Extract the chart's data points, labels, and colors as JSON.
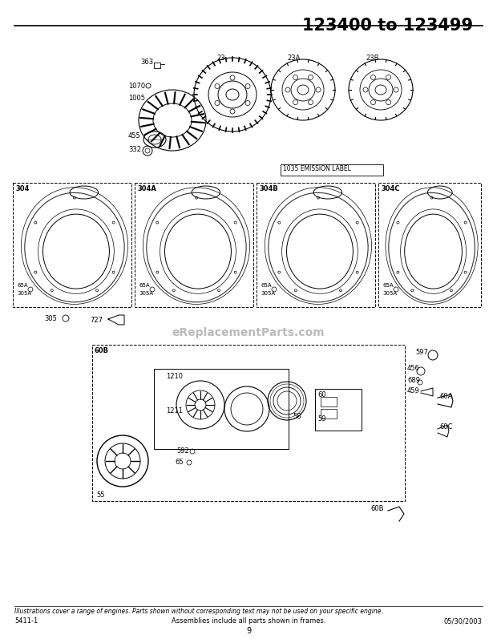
{
  "title": "123400 to 123499",
  "bg_color": "#ffffff",
  "footer_note_italic": "Illustrations cover a range of engines. Parts shown without corresponding text may not be used on your specific engine.",
  "footer_note_center": "Assemblies include all parts shown in frames.",
  "footer_left": "5411-1",
  "footer_right": "05/30/2003",
  "footer_page": "9",
  "watermark": "eReplacementParts.com"
}
